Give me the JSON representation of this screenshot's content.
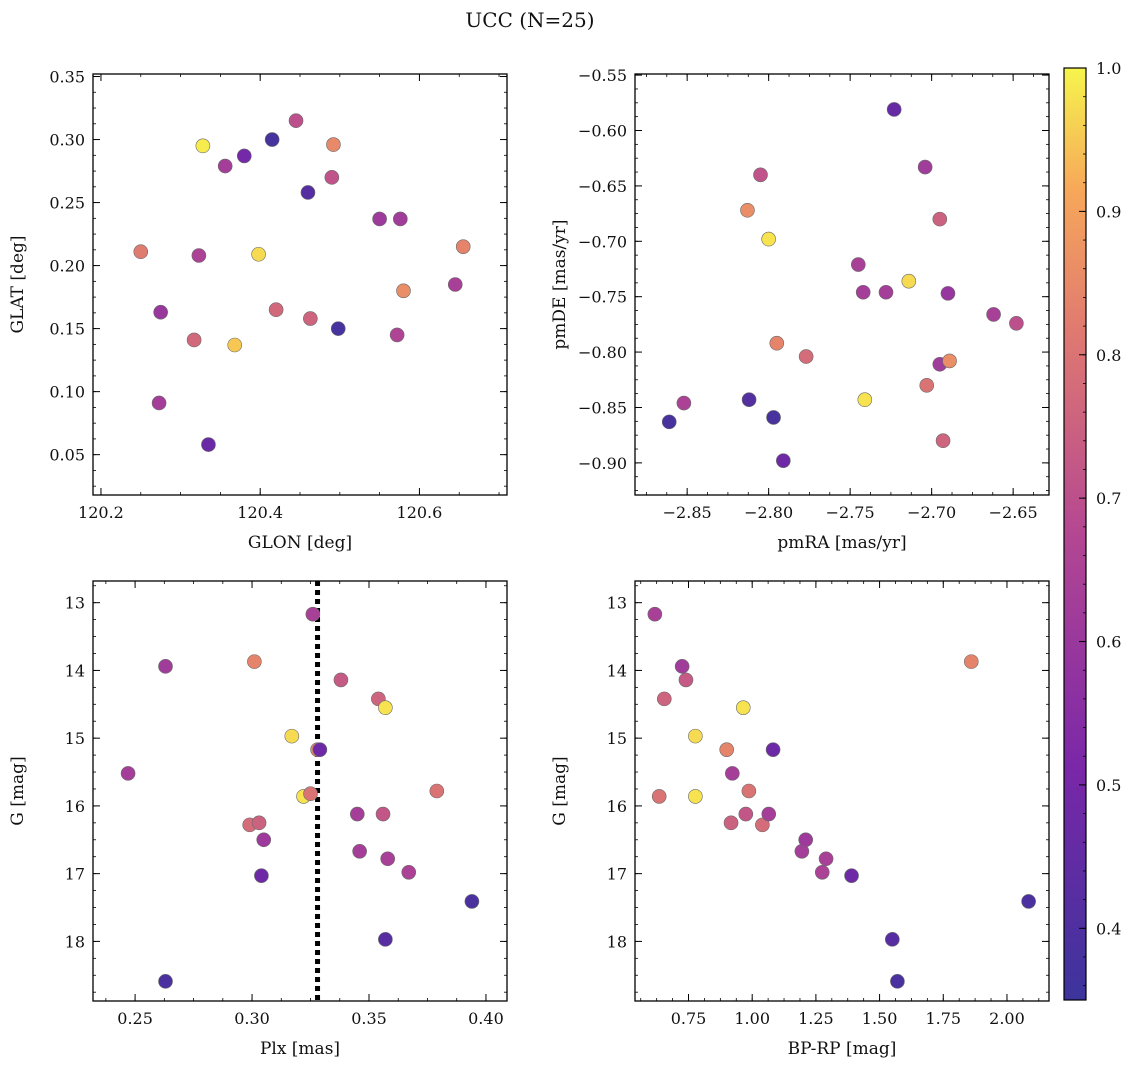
{
  "title": "UCC (N=25)",
  "colorbar": {
    "min": 0.35,
    "max": 1.0,
    "ticks": [
      0.4,
      0.5,
      0.6,
      0.7,
      0.8,
      0.9,
      1.0
    ],
    "tick_labels": [
      "0.4",
      "0.5",
      "0.6",
      "0.7",
      "0.8",
      "0.9",
      "1.0"
    ],
    "colormap": "plasma"
  },
  "reference_line": {
    "panel": 2,
    "axis": "x",
    "value": 0.328,
    "style": "dotted",
    "color": "#000000"
  },
  "chart_data": [
    {
      "type": "scatter",
      "xlabel": "GLON [deg]",
      "ylabel": "GLAT [deg]",
      "xlim": [
        120.19,
        120.71
      ],
      "ylim": [
        0.018,
        0.352
      ],
      "xticks": [
        120.2,
        120.4,
        120.6
      ],
      "xtick_labels": [
        "120.2",
        "120.4",
        "120.6"
      ],
      "yticks": [
        0.05,
        0.1,
        0.15,
        0.2,
        0.25,
        0.3,
        0.35
      ],
      "ytick_labels": [
        "0.05",
        "0.10",
        "0.15",
        "0.20",
        "0.25",
        "0.30",
        "0.35"
      ],
      "yinvert": false,
      "points": [
        {
          "x": 120.25,
          "y": 0.211,
          "c": 0.82
        },
        {
          "x": 120.273,
          "y": 0.091,
          "c": 0.63
        },
        {
          "x": 120.275,
          "y": 0.163,
          "c": 0.6
        },
        {
          "x": 120.317,
          "y": 0.141,
          "c": 0.77
        },
        {
          "x": 120.323,
          "y": 0.208,
          "c": 0.65
        },
        {
          "x": 120.328,
          "y": 0.295,
          "c": 0.99
        },
        {
          "x": 120.335,
          "y": 0.058,
          "c": 0.47
        },
        {
          "x": 120.356,
          "y": 0.279,
          "c": 0.63
        },
        {
          "x": 120.368,
          "y": 0.137,
          "c": 0.95
        },
        {
          "x": 120.38,
          "y": 0.287,
          "c": 0.5
        },
        {
          "x": 120.398,
          "y": 0.209,
          "c": 0.97
        },
        {
          "x": 120.415,
          "y": 0.3,
          "c": 0.38
        },
        {
          "x": 120.42,
          "y": 0.165,
          "c": 0.77
        },
        {
          "x": 120.445,
          "y": 0.315,
          "c": 0.7
        },
        {
          "x": 120.46,
          "y": 0.258,
          "c": 0.42
        },
        {
          "x": 120.463,
          "y": 0.158,
          "c": 0.76
        },
        {
          "x": 120.49,
          "y": 0.27,
          "c": 0.71
        },
        {
          "x": 120.492,
          "y": 0.296,
          "c": 0.85
        },
        {
          "x": 120.498,
          "y": 0.15,
          "c": 0.38
        },
        {
          "x": 120.55,
          "y": 0.237,
          "c": 0.61
        },
        {
          "x": 120.572,
          "y": 0.145,
          "c": 0.66
        },
        {
          "x": 120.576,
          "y": 0.237,
          "c": 0.62
        },
        {
          "x": 120.58,
          "y": 0.18,
          "c": 0.86
        },
        {
          "x": 120.645,
          "y": 0.185,
          "c": 0.64
        },
        {
          "x": 120.655,
          "y": 0.215,
          "c": 0.84
        }
      ]
    },
    {
      "type": "scatter",
      "xlabel": "pmRA [mas/yr]",
      "ylabel": "pmDE [mas/yr]",
      "xlim": [
        -2.882,
        -2.628
      ],
      "ylim": [
        -0.929,
        -0.549
      ],
      "xticks": [
        -2.85,
        -2.8,
        -2.75,
        -2.7,
        -2.65
      ],
      "xtick_labels": [
        "−2.85",
        "−2.80",
        "−2.75",
        "−2.70",
        "−2.65"
      ],
      "yticks": [
        -0.9,
        -0.85,
        -0.8,
        -0.75,
        -0.7,
        -0.65,
        -0.6,
        -0.55
      ],
      "ytick_labels": [
        "−0.90",
        "−0.85",
        "−0.80",
        "−0.75",
        "−0.70",
        "−0.65",
        "−0.60",
        "−0.55"
      ],
      "yinvert": false,
      "points": [
        {
          "x": -2.861,
          "y": -0.863,
          "c": 0.38
        },
        {
          "x": -2.852,
          "y": -0.846,
          "c": 0.65
        },
        {
          "x": -2.812,
          "y": -0.843,
          "c": 0.41
        },
        {
          "x": -2.813,
          "y": -0.672,
          "c": 0.86
        },
        {
          "x": -2.805,
          "y": -0.64,
          "c": 0.71
        },
        {
          "x": -2.8,
          "y": -0.698,
          "c": 0.98
        },
        {
          "x": -2.797,
          "y": -0.859,
          "c": 0.38
        },
        {
          "x": -2.795,
          "y": -0.792,
          "c": 0.84
        },
        {
          "x": -2.791,
          "y": -0.898,
          "c": 0.48
        },
        {
          "x": -2.777,
          "y": -0.804,
          "c": 0.78
        },
        {
          "x": -2.745,
          "y": -0.721,
          "c": 0.64
        },
        {
          "x": -2.742,
          "y": -0.746,
          "c": 0.63
        },
        {
          "x": -2.741,
          "y": -0.843,
          "c": 0.98
        },
        {
          "x": -2.728,
          "y": -0.746,
          "c": 0.63
        },
        {
          "x": -2.723,
          "y": -0.581,
          "c": 0.46
        },
        {
          "x": -2.714,
          "y": -0.736,
          "c": 0.97
        },
        {
          "x": -2.704,
          "y": -0.633,
          "c": 0.62
        },
        {
          "x": -2.703,
          "y": -0.83,
          "c": 0.8
        },
        {
          "x": -2.695,
          "y": -0.68,
          "c": 0.75
        },
        {
          "x": -2.695,
          "y": -0.811,
          "c": 0.62
        },
        {
          "x": -2.693,
          "y": -0.88,
          "c": 0.76
        },
        {
          "x": -2.69,
          "y": -0.747,
          "c": 0.59
        },
        {
          "x": -2.689,
          "y": -0.808,
          "c": 0.86
        },
        {
          "x": -2.662,
          "y": -0.766,
          "c": 0.64
        },
        {
          "x": -2.648,
          "y": -0.774,
          "c": 0.7
        }
      ]
    },
    {
      "type": "scatter",
      "xlabel": "Plx [mas]",
      "ylabel": "G [mag]",
      "xlim": [
        0.232,
        0.409
      ],
      "ylim": [
        12.68,
        18.88
      ],
      "xticks": [
        0.25,
        0.3,
        0.35,
        0.4
      ],
      "xtick_labels": [
        "0.25",
        "0.30",
        "0.35",
        "0.40"
      ],
      "yticks": [
        13,
        14,
        15,
        16,
        17,
        18
      ],
      "ytick_labels": [
        "13",
        "14",
        "15",
        "16",
        "17",
        "18"
      ],
      "yinvert": true,
      "points": [
        {
          "x": 0.247,
          "y": 15.52,
          "c": 0.63
        },
        {
          "x": 0.263,
          "y": 13.94,
          "c": 0.62
        },
        {
          "x": 0.263,
          "y": 18.59,
          "c": 0.39
        },
        {
          "x": 0.299,
          "y": 16.28,
          "c": 0.78
        },
        {
          "x": 0.301,
          "y": 13.87,
          "c": 0.84
        },
        {
          "x": 0.303,
          "y": 16.25,
          "c": 0.75
        },
        {
          "x": 0.305,
          "y": 16.5,
          "c": 0.61
        },
        {
          "x": 0.304,
          "y": 17.03,
          "c": 0.48
        },
        {
          "x": 0.317,
          "y": 14.97,
          "c": 0.97
        },
        {
          "x": 0.322,
          "y": 15.86,
          "c": 0.98
        },
        {
          "x": 0.325,
          "y": 15.82,
          "c": 0.8
        },
        {
          "x": 0.326,
          "y": 13.17,
          "c": 0.64
        },
        {
          "x": 0.328,
          "y": 15.17,
          "c": 0.84
        },
        {
          "x": 0.329,
          "y": 15.17,
          "c": 0.48
        },
        {
          "x": 0.338,
          "y": 14.14,
          "c": 0.73
        },
        {
          "x": 0.345,
          "y": 16.12,
          "c": 0.63
        },
        {
          "x": 0.346,
          "y": 16.67,
          "c": 0.63
        },
        {
          "x": 0.354,
          "y": 14.42,
          "c": 0.76
        },
        {
          "x": 0.356,
          "y": 16.12,
          "c": 0.72
        },
        {
          "x": 0.357,
          "y": 17.97,
          "c": 0.42
        },
        {
          "x": 0.357,
          "y": 14.55,
          "c": 0.98
        },
        {
          "x": 0.358,
          "y": 16.78,
          "c": 0.64
        },
        {
          "x": 0.367,
          "y": 16.98,
          "c": 0.65
        },
        {
          "x": 0.379,
          "y": 15.78,
          "c": 0.8
        },
        {
          "x": 0.394,
          "y": 17.41,
          "c": 0.39
        }
      ]
    },
    {
      "type": "scatter",
      "xlabel": "BP-RP [mag]",
      "ylabel": "G [mag]",
      "xlim": [
        0.54,
        2.165
      ],
      "ylim": [
        12.68,
        18.88
      ],
      "xticks": [
        0.75,
        1.0,
        1.25,
        1.5,
        1.75,
        2.0
      ],
      "xtick_labels": [
        "0.75",
        "1.00",
        "1.25",
        "1.50",
        "1.75",
        "2.00"
      ],
      "yticks": [
        13,
        14,
        15,
        16,
        17,
        18
      ],
      "ytick_labels": [
        "13",
        "14",
        "15",
        "16",
        "17",
        "18"
      ],
      "yinvert": true,
      "points": [
        {
          "x": 0.618,
          "y": 13.17,
          "c": 0.64
        },
        {
          "x": 0.635,
          "y": 15.86,
          "c": 0.8
        },
        {
          "x": 0.655,
          "y": 14.42,
          "c": 0.76
        },
        {
          "x": 0.725,
          "y": 13.94,
          "c": 0.62
        },
        {
          "x": 0.74,
          "y": 14.14,
          "c": 0.73
        },
        {
          "x": 0.777,
          "y": 14.97,
          "c": 0.97
        },
        {
          "x": 0.777,
          "y": 15.86,
          "c": 0.98
        },
        {
          "x": 0.9,
          "y": 15.17,
          "c": 0.84
        },
        {
          "x": 0.917,
          "y": 16.25,
          "c": 0.75
        },
        {
          "x": 0.922,
          "y": 15.52,
          "c": 0.63
        },
        {
          "x": 0.965,
          "y": 14.55,
          "c": 0.98
        },
        {
          "x": 0.975,
          "y": 16.12,
          "c": 0.72
        },
        {
          "x": 0.987,
          "y": 15.78,
          "c": 0.8
        },
        {
          "x": 1.04,
          "y": 16.28,
          "c": 0.78
        },
        {
          "x": 1.065,
          "y": 16.12,
          "c": 0.63
        },
        {
          "x": 1.082,
          "y": 15.17,
          "c": 0.48
        },
        {
          "x": 1.195,
          "y": 16.67,
          "c": 0.63
        },
        {
          "x": 1.21,
          "y": 16.5,
          "c": 0.61
        },
        {
          "x": 1.275,
          "y": 16.98,
          "c": 0.65
        },
        {
          "x": 1.29,
          "y": 16.78,
          "c": 0.64
        },
        {
          "x": 1.39,
          "y": 17.03,
          "c": 0.48
        },
        {
          "x": 1.55,
          "y": 17.97,
          "c": 0.42
        },
        {
          "x": 1.57,
          "y": 18.59,
          "c": 0.39
        },
        {
          "x": 1.86,
          "y": 13.87,
          "c": 0.84
        },
        {
          "x": 2.085,
          "y": 17.41,
          "c": 0.39
        }
      ]
    }
  ]
}
